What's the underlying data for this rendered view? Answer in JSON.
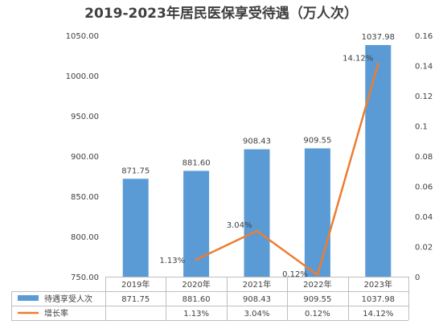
{
  "chart_data": {
    "type": "bar",
    "title": "2019-2023年居民医保享受待遇（万人次）",
    "categories": [
      "2019年",
      "2020年",
      "2021年",
      "2022年",
      "2023年"
    ],
    "series": [
      {
        "name": "待遇享受人次",
        "type": "bar",
        "axis": "left",
        "color": "#5b9bd5",
        "values": [
          871.75,
          881.6,
          908.43,
          909.55,
          1037.98
        ],
        "value_labels": [
          "871.75",
          "881.60",
          "908.43",
          "909.55",
          "1037.98"
        ]
      },
      {
        "name": "增长率",
        "type": "line",
        "axis": "right",
        "color": "#ed7d31",
        "values": [
          null,
          0.0113,
          0.0304,
          0.0012,
          0.1412
        ],
        "value_labels": [
          "",
          "1.13%",
          "3.04%",
          "0.12%",
          "14.12%"
        ]
      }
    ],
    "y_left": {
      "min": 750,
      "max": 1050,
      "ticks": [
        "750.00",
        "800.00",
        "850.00",
        "900.00",
        "950.00",
        "1000.00",
        "1050.00"
      ]
    },
    "y_right": {
      "min": 0,
      "max": 0.16,
      "ticks": [
        "0",
        "0.02",
        "0.04",
        "0.06",
        "0.08",
        "0.1",
        "0.12",
        "0.14",
        "0.16"
      ]
    },
    "data_table": {
      "rows": [
        {
          "name": "待遇享受人次",
          "cells": [
            "871.75",
            "881.60",
            "908.43",
            "909.55",
            "1037.98"
          ]
        },
        {
          "name": "增长率",
          "cells": [
            "",
            "1.13%",
            "3.04%",
            "0.12%",
            "14.12%"
          ]
        }
      ]
    },
    "grid": false,
    "legend": "data-table"
  }
}
